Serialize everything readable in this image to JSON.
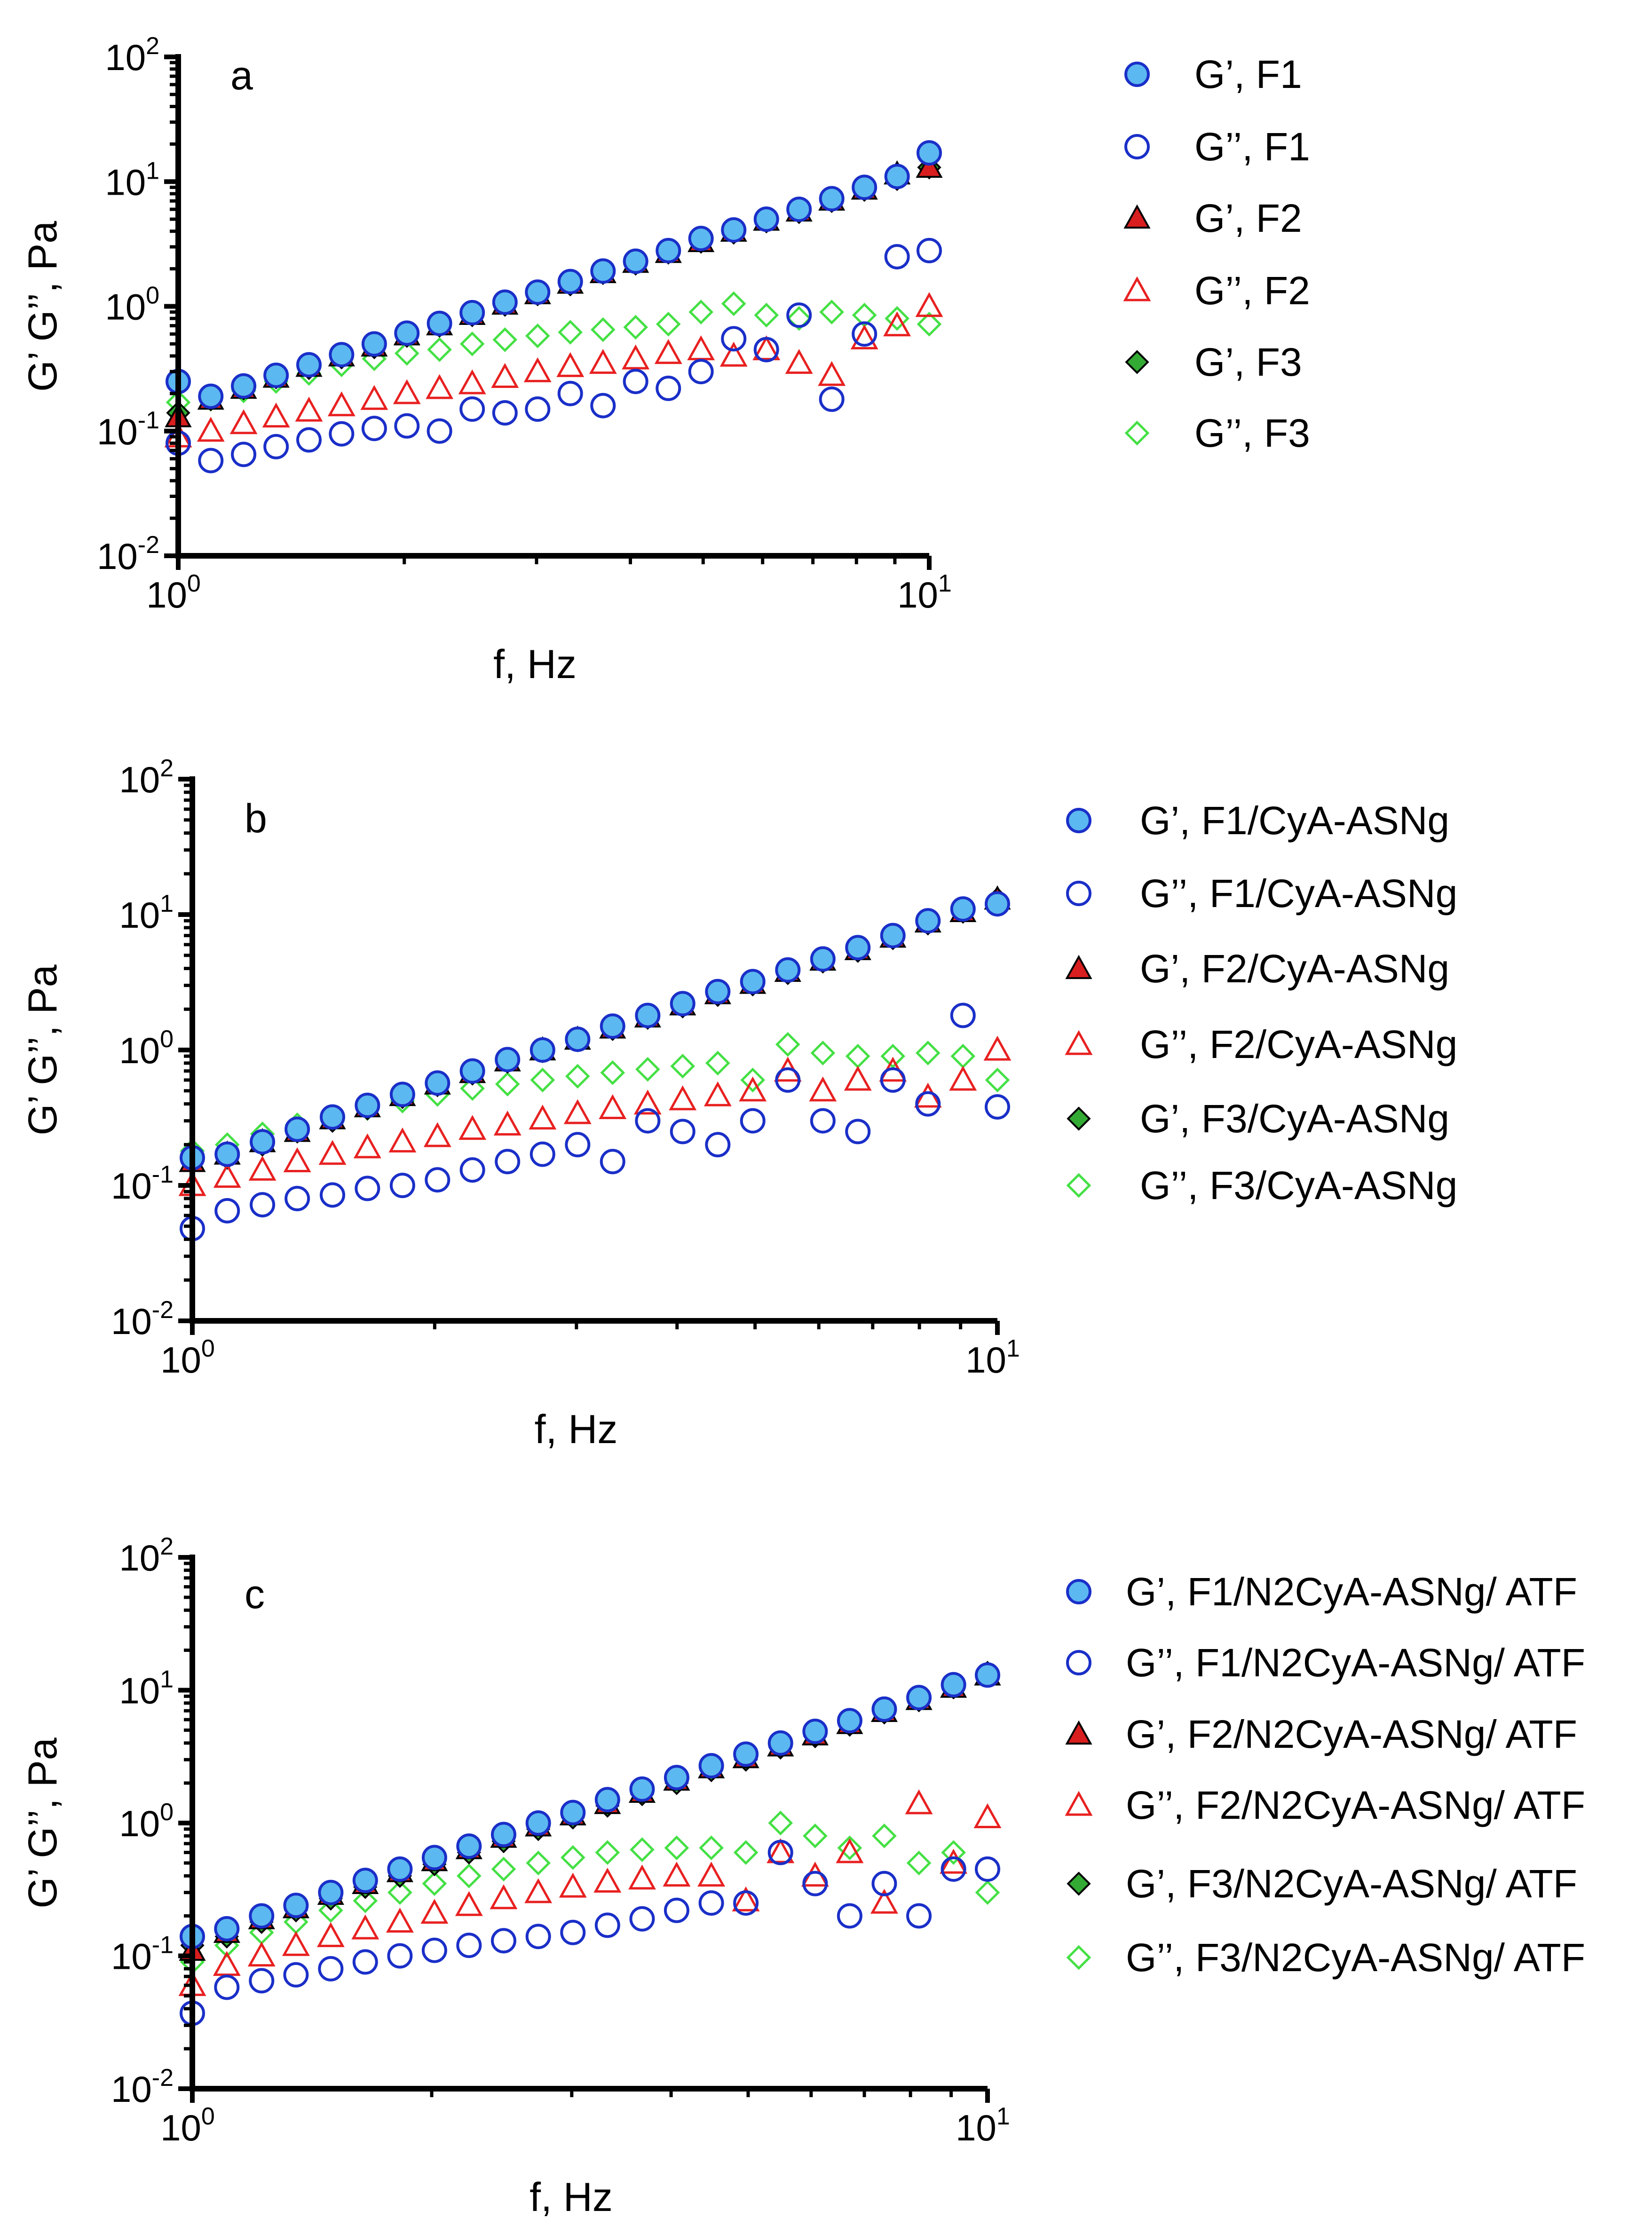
{
  "chart_data": [
    {
      "type": "scatter",
      "panel_label": "a",
      "xlabel": "f, Hz",
      "ylabel": "G’ G’’, Pa",
      "xscale": "log",
      "yscale": "log",
      "xlim": [
        1,
        10
      ],
      "ylim": [
        0.01,
        100
      ],
      "x_ticks": [
        "10^0",
        "10^1"
      ],
      "y_ticks": [
        "10^-2",
        "10^-1",
        "10^0",
        "10^1",
        "10^2"
      ],
      "legend_position": "right",
      "x": [
        1,
        1.105,
        1.222,
        1.35,
        1.493,
        1.65,
        1.824,
        2.016,
        2.228,
        2.463,
        2.723,
        3.01,
        3.327,
        3.678,
        4.065,
        4.494,
        4.967,
        5.491,
        6.07,
        6.709,
        7.416,
        8.198,
        9.062,
        10
      ],
      "series": [
        {
          "name": "G’, F1",
          "marker": "circle-filled",
          "values": [
            0.25,
            0.19,
            0.23,
            0.28,
            0.34,
            0.41,
            0.5,
            0.61,
            0.73,
            0.89,
            1.08,
            1.3,
            1.58,
            1.92,
            2.3,
            2.8,
            3.5,
            4.1,
            5.0,
            6.0,
            7.3,
            9.0,
            11,
            17
          ]
        },
        {
          "name": "G’’, F1",
          "marker": "circle-open",
          "values": [
            0.08,
            0.058,
            0.065,
            0.075,
            0.085,
            0.095,
            0.105,
            0.11,
            0.1,
            0.15,
            0.14,
            0.15,
            0.2,
            0.16,
            0.25,
            0.22,
            0.3,
            0.55,
            0.45,
            0.85,
            0.18,
            0.6,
            2.5,
            2.8
          ]
        },
        {
          "name": "G’, F2",
          "marker": "triangle-filled",
          "values": [
            0.13,
            0.18,
            0.22,
            0.27,
            0.33,
            0.4,
            0.48,
            0.59,
            0.71,
            0.86,
            1.04,
            1.26,
            1.53,
            1.86,
            2.25,
            2.7,
            3.3,
            4.0,
            4.9,
            5.8,
            7.1,
            8.7,
            11.5,
            13
          ]
        },
        {
          "name": "G’’, F2",
          "marker": "triangle-open",
          "values": [
            0.09,
            0.1,
            0.115,
            0.13,
            0.145,
            0.16,
            0.18,
            0.2,
            0.22,
            0.24,
            0.27,
            0.3,
            0.33,
            0.35,
            0.38,
            0.42,
            0.45,
            0.4,
            0.45,
            0.35,
            0.28,
            0.55,
            0.7,
            1.0
          ]
        },
        {
          "name": "G’, F3",
          "marker": "diamond-filled",
          "values": [
            0.14,
            0.18,
            0.22,
            0.27,
            0.32,
            0.39,
            0.47,
            0.58,
            0.7,
            0.85,
            1.03,
            1.25,
            1.5,
            1.85,
            2.2,
            2.7,
            3.3,
            3.9,
            4.8,
            5.7,
            7.0,
            8.6,
            10.5,
            13
          ]
        },
        {
          "name": "G’’, F3",
          "marker": "diamond-open",
          "values": [
            0.17,
            0.18,
            0.21,
            0.25,
            0.29,
            0.34,
            0.38,
            0.42,
            0.45,
            0.5,
            0.54,
            0.58,
            0.62,
            0.65,
            0.68,
            0.72,
            0.9,
            1.05,
            0.85,
            0.8,
            0.9,
            0.85,
            0.8,
            0.72
          ]
        }
      ]
    },
    {
      "type": "scatter",
      "panel_label": "b",
      "xlabel": "f, Hz",
      "ylabel": "G’ G’’, Pa",
      "xscale": "log",
      "yscale": "log",
      "xlim": [
        1,
        10
      ],
      "ylim": [
        0.01,
        100
      ],
      "x_ticks": [
        "10^0",
        "10^1"
      ],
      "y_ticks": [
        "10^-2",
        "10^-1",
        "10^0",
        "10^1",
        "10^2"
      ],
      "legend_position": "right",
      "x": [
        1,
        1.105,
        1.222,
        1.35,
        1.493,
        1.65,
        1.824,
        2.016,
        2.228,
        2.463,
        2.723,
        3.01,
        3.327,
        3.678,
        4.065,
        4.494,
        4.967,
        5.491,
        6.07,
        6.709,
        7.416,
        8.198,
        9.062,
        10
      ],
      "series": [
        {
          "name": "G’,  F1/CyA-ASNg",
          "marker": "circle-filled",
          "values": [
            0.16,
            0.17,
            0.21,
            0.26,
            0.32,
            0.39,
            0.47,
            0.57,
            0.7,
            0.85,
            1.0,
            1.2,
            1.5,
            1.8,
            2.2,
            2.7,
            3.2,
            3.9,
            4.7,
            5.7,
            7.0,
            9.0,
            11,
            12
          ]
        },
        {
          "name": "G’’, F1/CyA-ASNg",
          "marker": "circle-open",
          "values": [
            0.048,
            0.065,
            0.072,
            0.08,
            0.085,
            0.095,
            0.1,
            0.11,
            0.13,
            0.15,
            0.17,
            0.2,
            0.15,
            0.3,
            0.25,
            0.2,
            0.3,
            0.6,
            0.3,
            0.25,
            0.6,
            0.4,
            1.8,
            0.38
          ]
        },
        {
          "name": "G’, F2/CyA-ASNg",
          "marker": "triangle-filled",
          "values": [
            0.15,
            0.17,
            0.21,
            0.25,
            0.31,
            0.38,
            0.46,
            0.56,
            0.68,
            0.83,
            1.0,
            1.2,
            1.45,
            1.75,
            2.15,
            2.6,
            3.1,
            3.8,
            4.6,
            5.5,
            6.8,
            8.8,
            10.5,
            13
          ]
        },
        {
          "name": "G’’, F2/CyA-ASNg",
          "marker": "triangle-open",
          "values": [
            0.1,
            0.115,
            0.13,
            0.15,
            0.17,
            0.19,
            0.21,
            0.23,
            0.26,
            0.28,
            0.31,
            0.34,
            0.37,
            0.4,
            0.43,
            0.46,
            0.5,
            0.7,
            0.5,
            0.6,
            0.7,
            0.45,
            0.6,
            1.0
          ]
        },
        {
          "name": "G’, F3/CyA-ASNg",
          "marker": "diamond-filled",
          "values": [
            0.15,
            0.16,
            0.2,
            0.25,
            0.3,
            0.37,
            0.45,
            0.55,
            0.67,
            0.82,
            0.98,
            1.18,
            1.43,
            1.73,
            2.1,
            2.55,
            3.05,
            3.7,
            4.5,
            5.4,
            6.7,
            8.6,
            10.5,
            13
          ]
        },
        {
          "name": "G’’, F3/CyA-ASNg",
          "marker": "diamond-open",
          "values": [
            0.18,
            0.2,
            0.24,
            0.28,
            0.32,
            0.37,
            0.42,
            0.47,
            0.52,
            0.56,
            0.6,
            0.64,
            0.68,
            0.72,
            0.76,
            0.8,
            0.6,
            1.1,
            0.95,
            0.9,
            0.9,
            0.95,
            0.9,
            0.6
          ]
        }
      ]
    },
    {
      "type": "scatter",
      "panel_label": "c",
      "xlabel": "f, Hz",
      "ylabel": "G’ G’’, Pa",
      "xscale": "log",
      "yscale": "log",
      "xlim": [
        1,
        10
      ],
      "ylim": [
        0.01,
        100
      ],
      "x_ticks": [
        "10^0",
        "10^1"
      ],
      "y_ticks": [
        "10^-2",
        "10^-1",
        "10^0",
        "10^1",
        "10^2"
      ],
      "legend_position": "right",
      "x": [
        1,
        1.105,
        1.222,
        1.35,
        1.493,
        1.65,
        1.824,
        2.016,
        2.228,
        2.463,
        2.723,
        3.01,
        3.327,
        3.678,
        4.065,
        4.494,
        4.967,
        5.491,
        6.07,
        6.709,
        7.416,
        8.198,
        9.062,
        10
      ],
      "series": [
        {
          "name": "G’, F1/N2CyA-ASNg/ ATF",
          "marker": "circle-filled",
          "values": [
            0.14,
            0.16,
            0.2,
            0.24,
            0.3,
            0.37,
            0.45,
            0.55,
            0.67,
            0.82,
            1.0,
            1.2,
            1.5,
            1.8,
            2.2,
            2.7,
            3.3,
            4.0,
            4.9,
            5.9,
            7.2,
            8.8,
            11,
            13
          ]
        },
        {
          "name": "G’’, F1/N2CyA-ASNg/ ATF",
          "marker": "circle-open",
          "values": [
            0.037,
            0.058,
            0.065,
            0.072,
            0.08,
            0.09,
            0.1,
            0.11,
            0.12,
            0.13,
            0.14,
            0.15,
            0.17,
            0.19,
            0.22,
            0.25,
            0.25,
            0.6,
            0.35,
            0.2,
            0.35,
            0.2,
            0.45,
            0.45
          ]
        },
        {
          "name": "G’, F2/N2CyA-ASNg/ ATF",
          "marker": "triangle-filled",
          "values": [
            0.11,
            0.15,
            0.19,
            0.23,
            0.29,
            0.35,
            0.43,
            0.52,
            0.64,
            0.78,
            0.95,
            1.15,
            1.4,
            1.7,
            2.1,
            2.6,
            3.1,
            3.8,
            4.6,
            5.6,
            6.9,
            8.5,
            10.5,
            13
          ]
        },
        {
          "name": "G’’, F2/N2CyA-ASNg/ ATF",
          "marker": "triangle-open",
          "values": [
            0.06,
            0.085,
            0.1,
            0.12,
            0.14,
            0.16,
            0.18,
            0.21,
            0.24,
            0.27,
            0.3,
            0.33,
            0.36,
            0.38,
            0.4,
            0.4,
            0.26,
            0.6,
            0.4,
            0.6,
            0.25,
            1.4,
            0.5,
            1.1
          ]
        },
        {
          "name": "G’, F3/N2CyA-ASNg/ ATF",
          "marker": "diamond-filled",
          "values": [
            0.12,
            0.14,
            0.18,
            0.22,
            0.27,
            0.33,
            0.4,
            0.49,
            0.6,
            0.73,
            0.9,
            1.1,
            1.35,
            1.65,
            2.0,
            2.5,
            3.0,
            3.7,
            4.5,
            5.5,
            6.8,
            8.4,
            10.5,
            13.5
          ]
        },
        {
          "name": "G’’, F3/N2CyA-ASNg/ ATF",
          "marker": "diamond-open",
          "values": [
            0.09,
            0.12,
            0.15,
            0.18,
            0.22,
            0.26,
            0.3,
            0.35,
            0.4,
            0.45,
            0.5,
            0.55,
            0.6,
            0.63,
            0.65,
            0.65,
            0.6,
            1.0,
            0.8,
            0.65,
            0.8,
            0.5,
            0.6,
            0.3
          ]
        }
      ]
    }
  ],
  "colors": {
    "circle_fill": "#5cb8f0",
    "circle_stroke": "#1a2fc8",
    "triangle_fill": "#d81e1e",
    "triangle_open": "#e82020",
    "diamond_fill": "#33aa33",
    "diamond_open": "#44e044",
    "axis": "#000000"
  }
}
